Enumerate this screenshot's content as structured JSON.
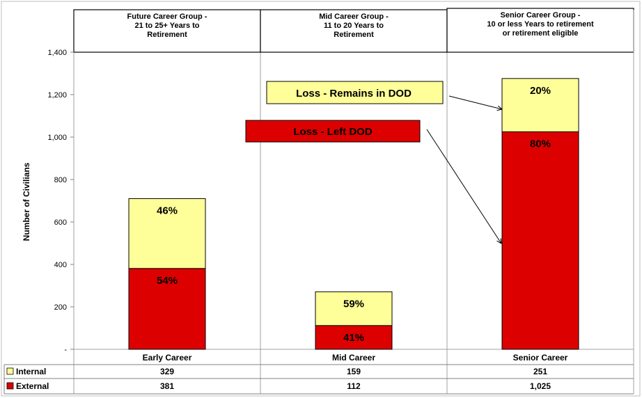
{
  "chart_data": {
    "type": "bar",
    "stacked": true,
    "categories": [
      "Early Career",
      "Mid Career",
      "Senior Career"
    ],
    "group_headers": [
      [
        "Future Career Group -",
        "21 to 25+ Years to",
        "Retirement"
      ],
      [
        "Mid Career Group -",
        "11 to 20 Years to",
        "Retirement"
      ],
      [
        "Senior Career Group -",
        "10 or less Years to retirement",
        "or retirement eligible"
      ]
    ],
    "series": [
      {
        "name": "External",
        "values": [
          381,
          112,
          1025
        ],
        "display": [
          "381",
          "112",
          "1,025"
        ],
        "pct_labels": [
          "54%",
          "41%",
          "80%"
        ],
        "color": "#dd0000"
      },
      {
        "name": "Internal",
        "values": [
          329,
          159,
          251
        ],
        "display": [
          "329",
          "159",
          "251"
        ],
        "pct_labels": [
          "46%",
          "59%",
          "20%"
        ],
        "color": "#ffff99"
      }
    ],
    "ylabel": "Number of Civilians",
    "ylim": [
      0,
      1400
    ],
    "yticks": [
      0,
      200,
      400,
      600,
      800,
      1000,
      1200,
      1400
    ],
    "ytick_labels": [
      "-",
      "200",
      "400",
      "600",
      "800",
      "1,000",
      "1,200",
      "1,400"
    ],
    "grid": "vertical separators between groups",
    "legend": "data table rows below chart",
    "annotations": [
      {
        "text": "Loss - Remains in DOD",
        "color": "#ffff99",
        "points_to": "Senior Career internal segment"
      },
      {
        "text": "Loss - Left DOD",
        "color": "#dd0000",
        "points_to": "Senior Career external segment"
      }
    ]
  }
}
